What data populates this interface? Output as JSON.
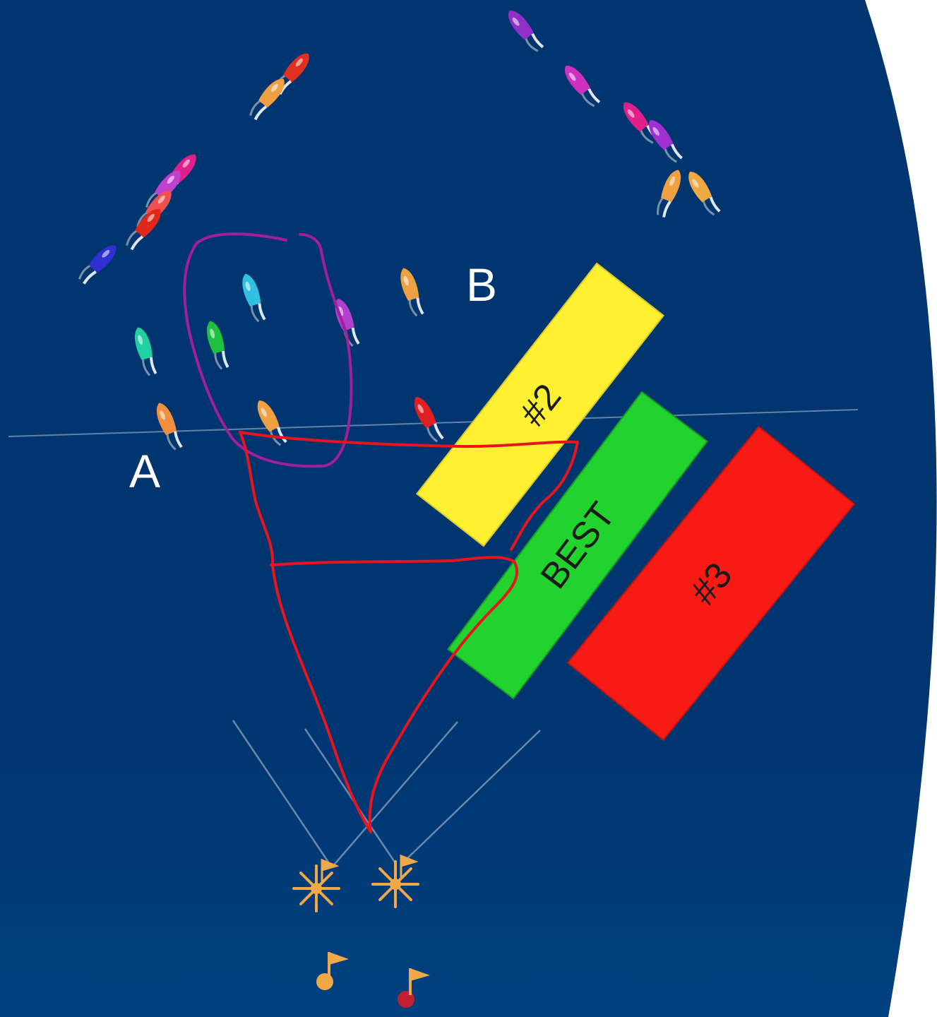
{
  "labels": {
    "point_a": "A",
    "point_b": "B"
  },
  "zones": [
    {
      "id": "zone-2",
      "label": "#2",
      "fill": "#FFF032"
    },
    {
      "id": "zone-best",
      "label": "BEST",
      "fill": "#22D22E"
    },
    {
      "id": "zone-3",
      "label": "#3",
      "fill": "#F81A14"
    }
  ],
  "colors": {
    "background": "#003570",
    "background_light": "#00417F",
    "annotation_circle": "#A0209A",
    "annotation_triangle": "#E8141E",
    "guide_line": "#8FA3BE",
    "mark_color": "#F0A848"
  },
  "icons": {
    "boat": "boat-icon",
    "start_mark": "start-mark-icon",
    "flag": "flag-icon"
  }
}
